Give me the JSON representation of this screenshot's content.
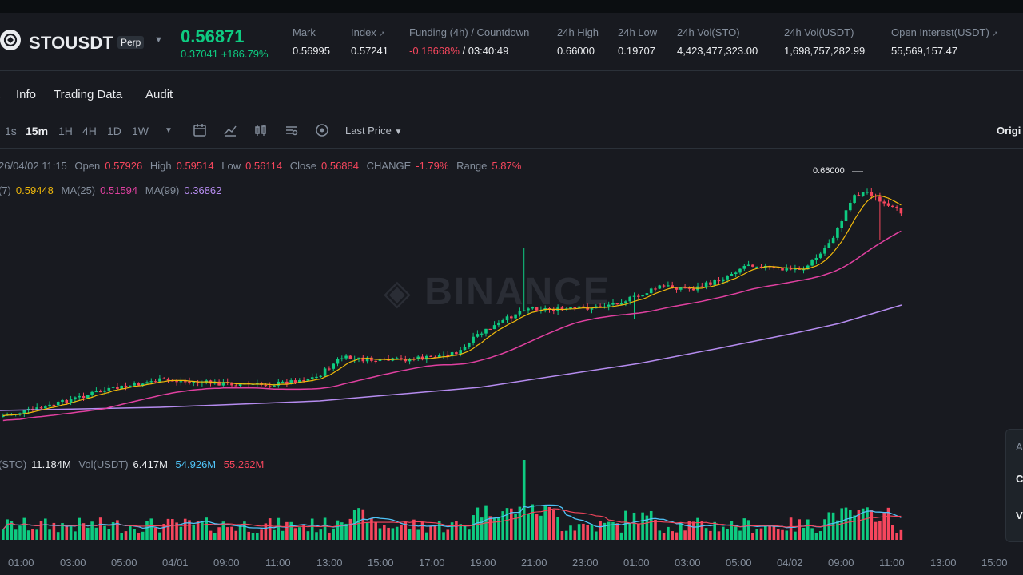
{
  "header": {
    "symbol": "STOUSDT",
    "contract_type": "Perp",
    "last_price": "0.56871",
    "change_abs": "0.37041",
    "change_pct": "+186.79%",
    "stats": [
      {
        "label": "Mark",
        "value": "0.56995",
        "negative": false
      },
      {
        "label": "Index",
        "value": "0.57241",
        "negative": false
      },
      {
        "label": "Funding (4h) / Countdown",
        "value": "-0.18668%",
        "extra": " / 03:40:49",
        "negative": true
      },
      {
        "label": "24h High",
        "value": "0.66000",
        "negative": false
      },
      {
        "label": "24h Low",
        "value": "0.19707",
        "negative": false
      },
      {
        "label": "24h Vol(STO)",
        "value": "4,423,477,323.00",
        "negative": false
      },
      {
        "label": "24h Vol(USDT)",
        "value": "1,698,757,282.99",
        "negative": false
      },
      {
        "label": "Open Interest(USDT)",
        "value": "55,569,157.47",
        "negative": false
      }
    ]
  },
  "tabs": [
    "Info",
    "Trading Data",
    "Audit"
  ],
  "toolbar": {
    "timeframes": [
      "1s",
      "15m",
      "1H",
      "4H",
      "1D",
      "1W"
    ],
    "active_timeframe": "15m",
    "price_type": "Last Price",
    "right_label": "Origi"
  },
  "ohlc": {
    "datetime": "26/04/02 11:15",
    "open_label": "Open",
    "open": "0.57926",
    "high_label": "High",
    "high": "0.59514",
    "low_label": "Low",
    "low": "0.56114",
    "close_label": "Close",
    "close": "0.56884",
    "change_label": "CHANGE",
    "change": "-1.79%",
    "range_label": "Range",
    "range": "5.87%"
  },
  "ma": {
    "ma7_label": "(7)",
    "ma7": "0.59448",
    "ma25_label": "MA(25)",
    "ma25": "0.51594",
    "ma99_label": "MA(99)",
    "ma99": "0.36862"
  },
  "volume_info": {
    "vol_sto_label": "(STO)",
    "vol_sto": "11.184M",
    "vol_usdt_label": "Vol(USDT)",
    "vol_usdt": "6.417M",
    "ma_a": "54.926M",
    "ma_b": "55.262M"
  },
  "chart_high_label": "0.66000",
  "watermark": "BINANCE",
  "time_axis": [
    "01:00",
    "03:00",
    "05:00",
    "04/01",
    "09:00",
    "11:00",
    "13:00",
    "15:00",
    "17:00",
    "19:00",
    "21:00",
    "23:00",
    "01:00",
    "03:00",
    "05:00",
    "04/02",
    "09:00",
    "11:00",
    "13:00",
    "15:00"
  ],
  "side_panel": {
    "top": "A",
    "mid": "C",
    "bottom": "V"
  },
  "colors": {
    "up": "#0ecb81",
    "down": "#f6465d",
    "ma7": "#f0b90b",
    "ma25": "#e040a0",
    "ma99": "#b68cf0"
  }
}
